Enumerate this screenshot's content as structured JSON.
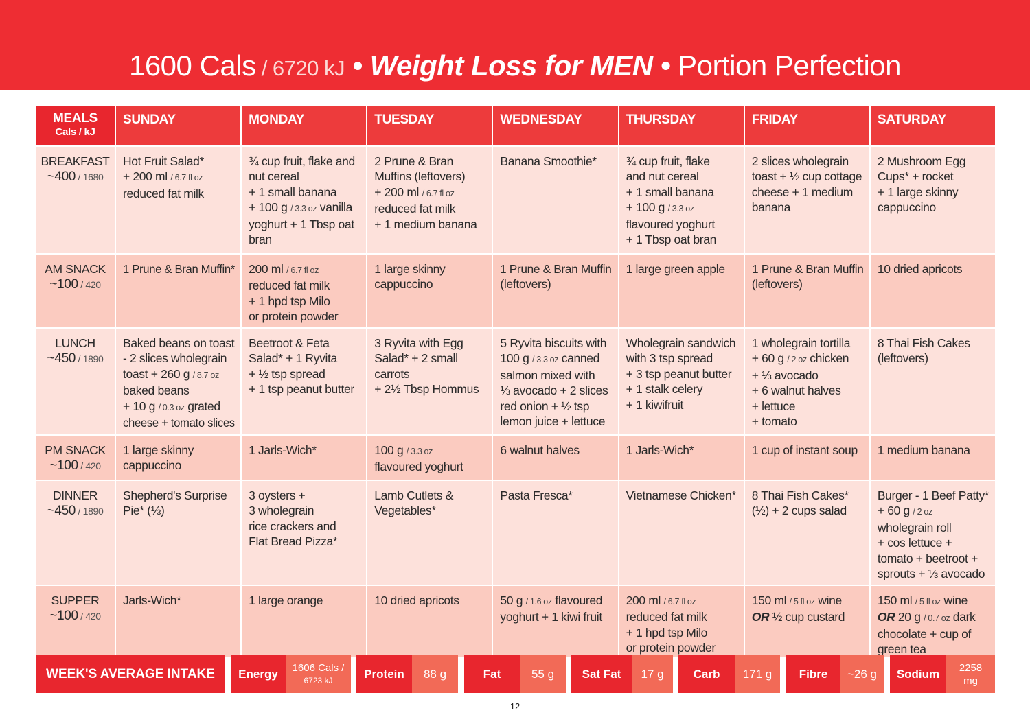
{
  "header": {
    "cals": "1600 Cals",
    "kj": " / 6720 kJ",
    "sep1": " • ",
    "main": "Weight Loss for MEN",
    "sep2": " • ",
    "brand": "Portion Perfection"
  },
  "table": {
    "corner": {
      "title": "MEALS",
      "sub": "Cals / kJ"
    },
    "days": [
      "SUNDAY",
      "MONDAY",
      "TUESDAY",
      "WEDNESDAY",
      "THURSDAY",
      "FRIDAY",
      "SATURDAY"
    ],
    "rows": [
      {
        "meal": "BREAKFAST",
        "cals": "~400",
        "kj": " / 1680",
        "shade": "light",
        "cells": [
          [
            [
              "Hot Fruit Salad*"
            ],
            [
              "+ 200 ml ",
              {
                "small": "/ 6.7 fl oz"
              }
            ],
            [
              "reduced fat milk"
            ]
          ],
          [
            [
              "¾ cup fruit, flake and"
            ],
            [
              "nut cereal"
            ],
            [
              "+ 1 small banana"
            ],
            [
              "+ 100 g ",
              {
                "small": "/ 3.3 oz"
              },
              " vanilla"
            ],
            [
              "yoghurt + 1 Tbsp oat"
            ],
            [
              "bran"
            ]
          ],
          [
            [
              "2 Prune & Bran"
            ],
            [
              "Muffins (leftovers)"
            ],
            [
              "+ 200 ml ",
              {
                "small": "/ 6.7 fl oz"
              }
            ],
            [
              "reduced fat milk"
            ],
            [
              "+ 1 medium banana"
            ]
          ],
          [
            [
              "Banana Smoothie*"
            ]
          ],
          [
            [
              "¾ cup fruit, flake"
            ],
            [
              "and nut cereal"
            ],
            [
              "+ 1 small banana"
            ],
            [
              "+ 100 g ",
              {
                "small": "/ 3.3 oz"
              }
            ],
            [
              "flavoured yoghurt"
            ],
            [
              "+ 1 Tbsp oat bran"
            ]
          ],
          [
            [
              "2 slices wholegrain"
            ],
            [
              "toast + ½ cup cottage"
            ],
            [
              "cheese + 1 medium"
            ],
            [
              "banana"
            ]
          ],
          [
            [
              "2 Mushroom Egg"
            ],
            [
              "Cups* + rocket"
            ],
            [
              "+ 1 large skinny"
            ],
            [
              "cappuccino"
            ]
          ]
        ]
      },
      {
        "meal": "AM SNACK",
        "cals": "~100",
        "kj": " / 420",
        "shade": "dark",
        "cells": [
          [
            [
              "1 Prune & Bran Muffin*"
            ]
          ],
          [
            [
              "200 ml ",
              {
                "small": "/ 6.7 fl oz"
              }
            ],
            [
              "reduced fat milk"
            ],
            [
              "+ 1 hpd tsp Milo"
            ],
            [
              "or protein powder"
            ]
          ],
          [
            [
              "1 large skinny"
            ],
            [
              "cappuccino"
            ]
          ],
          [
            [
              "1 Prune & Bran Muffin"
            ],
            [
              "(leftovers)"
            ]
          ],
          [
            [
              "1 large green apple"
            ]
          ],
          [
            [
              "1 Prune & Bran Muffin"
            ],
            [
              "(leftovers)"
            ]
          ],
          [
            [
              "10 dried apricots"
            ]
          ]
        ]
      },
      {
        "meal": "LUNCH",
        "cals": "~450",
        "kj": " / 1890",
        "shade": "light",
        "cells": [
          [
            [
              "Baked beans on toast"
            ],
            [
              "- 2 slices wholegrain"
            ],
            [
              "toast + 260 g ",
              {
                "small": "/ 8.7 oz"
              }
            ],
            [
              "baked beans"
            ],
            [
              "+ 10 g ",
              {
                "small": "/ 0.3 oz"
              },
              " grated"
            ],
            [
              "cheese + tomato slices"
            ]
          ],
          [
            [
              "Beetroot & Feta"
            ],
            [
              "Salad* + 1 Ryvita"
            ],
            [
              "+ ½ tsp spread"
            ],
            [
              "+ 1 tsp peanut butter"
            ]
          ],
          [
            [
              "3 Ryvita with Egg"
            ],
            [
              "Salad* + 2 small"
            ],
            [
              "carrots"
            ],
            [
              "+ 2½ Tbsp Hommus"
            ]
          ],
          [
            [
              "5 Ryvita biscuits with"
            ],
            [
              "100 g ",
              {
                "small": "/ 3.3 oz"
              },
              " canned"
            ],
            [
              "salmon mixed with"
            ],
            [
              "⅓ avocado + 2 slices"
            ],
            [
              "red onion + ½ tsp"
            ],
            [
              "lemon juice + lettuce"
            ]
          ],
          [
            [
              "Wholegrain sandwich"
            ],
            [
              "with 3 tsp spread"
            ],
            [
              "+ 3 tsp peanut butter"
            ],
            [
              "+ 1 stalk celery"
            ],
            [
              "+ 1 kiwifruit"
            ]
          ],
          [
            [
              "1 wholegrain tortilla"
            ],
            [
              "+ 60 g ",
              {
                "small": "/ 2 oz"
              },
              " chicken"
            ],
            [
              "+ ⅓ avocado"
            ],
            [
              "+ 6 walnut halves"
            ],
            [
              "+ lettuce"
            ],
            [
              "+ tomato"
            ]
          ],
          [
            [
              "8 Thai Fish Cakes"
            ],
            [
              "(leftovers)"
            ]
          ]
        ]
      },
      {
        "meal": "PM SNACK",
        "cals": "~100",
        "kj": " / 420",
        "shade": "dark",
        "cells": [
          [
            [
              "1 large skinny"
            ],
            [
              "cappuccino"
            ]
          ],
          [
            [
              "1 Jarls-Wich*"
            ]
          ],
          [
            [
              "100 g ",
              {
                "small": "/ 3.3 oz"
              }
            ],
            [
              "flavoured yoghurt"
            ]
          ],
          [
            [
              "6 walnut halves"
            ]
          ],
          [
            [
              "1 Jarls-Wich*"
            ]
          ],
          [
            [
              "1 cup of instant soup"
            ]
          ],
          [
            [
              "1 medium banana"
            ]
          ]
        ]
      },
      {
        "meal": "DINNER",
        "cals": "~450",
        "kj": " / 1890",
        "shade": "light",
        "cells": [
          [
            [
              "Shepherd's Surprise"
            ],
            [
              "Pie* (⅓)"
            ]
          ],
          [
            [
              "3 oysters +"
            ],
            [
              "3 wholegrain"
            ],
            [
              "rice crackers and"
            ],
            [
              "Flat Bread Pizza*"
            ]
          ],
          [
            [
              "Lamb Cutlets &"
            ],
            [
              "Vegetables*"
            ]
          ],
          [
            [
              "Pasta Fresca*"
            ]
          ],
          [
            [
              "Vietnamese Chicken*"
            ]
          ],
          [
            [
              "8 Thai Fish Cakes*"
            ],
            [
              "(½) + 2 cups salad"
            ]
          ],
          [
            [
              "Burger - 1 Beef Patty*"
            ],
            [
              "+ 60 g ",
              {
                "small": "/ 2 oz"
              }
            ],
            [
              "wholegrain roll"
            ],
            [
              "+ cos lettuce +"
            ],
            [
              "tomato + beetroot +"
            ],
            [
              "sprouts + ⅓ avocado"
            ]
          ]
        ]
      },
      {
        "meal": "SUPPER",
        "cals": "~100",
        "kj": " / 420",
        "shade": "dark",
        "cells": [
          [
            [
              "Jarls-Wich*"
            ]
          ],
          [
            [
              "1 large orange"
            ]
          ],
          [
            [
              "10 dried apricots"
            ]
          ],
          [
            [
              "50 g ",
              {
                "small": "/ 1.6 oz"
              },
              " flavoured"
            ],
            [
              "yoghurt + 1 kiwi fruit"
            ]
          ],
          [
            [
              "200 ml ",
              {
                "small": "/ 6.7 fl oz"
              }
            ],
            [
              "reduced fat milk"
            ],
            [
              "+ 1 hpd tsp Milo"
            ],
            [
              "or protein powder"
            ]
          ],
          [
            [
              "150 ml ",
              {
                "small": "/ 5 fl oz"
              },
              " wine"
            ],
            [
              {
                "bold": "OR"
              },
              " ½ cup custard"
            ]
          ],
          [
            [
              "150 ml ",
              {
                "small": "/ 5 fl oz"
              },
              " wine"
            ],
            [
              {
                "bold": "OR"
              },
              " 20 g ",
              {
                "small": "/ 0.7 oz"
              },
              " dark"
            ],
            [
              "chocolate + cup of"
            ],
            [
              "green tea"
            ]
          ]
        ]
      }
    ]
  },
  "summary": {
    "title": "WEEK'S AVERAGE INTAKE",
    "items": [
      {
        "label": "Energy",
        "value": "1606 Cals /",
        "value2": "6723 kJ"
      },
      {
        "label": "Protein",
        "value": "88 g"
      },
      {
        "label": "Fat",
        "value": "55 g"
      },
      {
        "label": "Sat Fat",
        "value": "17 g"
      },
      {
        "label": "Carb",
        "value": "171 g"
      },
      {
        "label": "Fibre",
        "value": "~26 g"
      },
      {
        "label": "Sodium",
        "value": "2258",
        "value2": "mg"
      }
    ]
  },
  "page_number": "12"
}
